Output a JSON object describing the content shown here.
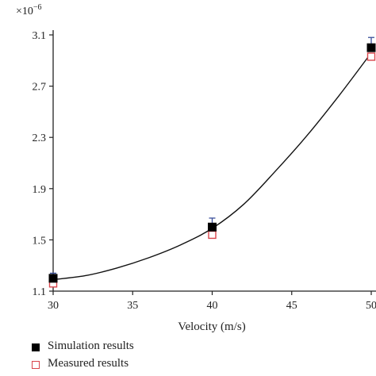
{
  "chart_data": {
    "type": "scatter",
    "title": "",
    "xlabel": "Velocity (m/s)",
    "ylabel": "",
    "scale_note": "×10",
    "scale_exp": "−6",
    "xlim": [
      30,
      50
    ],
    "ylim": [
      1.1,
      3.1
    ],
    "xticks": [
      "30",
      "35",
      "40",
      "45",
      "50"
    ],
    "yticks": [
      "1.1",
      "1.5",
      "1.9",
      "2.3",
      "2.7",
      "3.1"
    ],
    "x": [
      30,
      40,
      50
    ],
    "series": [
      {
        "name": "Simulation results",
        "marker": "filled-square",
        "color": "#000000",
        "values": [
          1.2,
          1.6,
          3.0
        ],
        "error_upper": [
          1.24,
          1.67,
          3.08
        ]
      },
      {
        "name": "Measured results",
        "marker": "open-square",
        "color": "#d9454c",
        "values": [
          1.16,
          1.54,
          2.93
        ]
      }
    ],
    "fit_curve": {
      "x": [
        30,
        32,
        34,
        36,
        38,
        40,
        42,
        44,
        46,
        48,
        50
      ],
      "y": [
        1.19,
        1.22,
        1.28,
        1.36,
        1.46,
        1.59,
        1.78,
        2.04,
        2.32,
        2.63,
        2.96
      ]
    },
    "errorbar_color": "#3a4f9a",
    "legend_position": "bottom-left",
    "grid": false
  }
}
